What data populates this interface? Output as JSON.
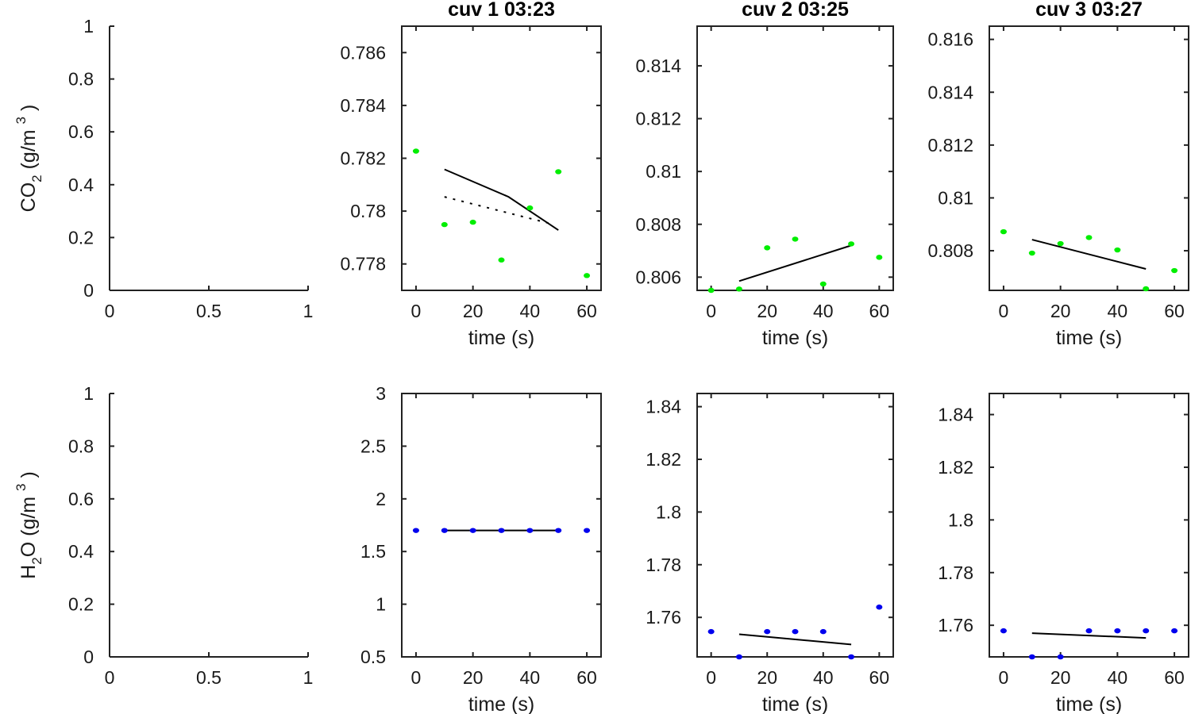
{
  "chart_data": [
    {
      "id": "co2-empty",
      "type": "scatter",
      "row": 0,
      "col": 0,
      "title": "",
      "xlabel": "",
      "ylabel": {
        "base": "CO",
        "sub": "2",
        "unit": "(g/m",
        "sup": "3",
        "close": ")"
      },
      "xlim": [
        0,
        1
      ],
      "ylim": [
        0,
        1
      ],
      "xticks": [
        0,
        0.5,
        1
      ],
      "xtick_labels": [
        "0",
        "0.5",
        "1"
      ],
      "yticks": [
        0,
        0.2,
        0.4,
        0.6,
        0.8,
        1
      ],
      "ytick_labels": [
        "0",
        "0.2",
        "0.4",
        "0.6",
        "0.8",
        "1"
      ],
      "box": false,
      "points": [],
      "lines": []
    },
    {
      "id": "co2-cuv1",
      "type": "scatter",
      "row": 0,
      "col": 1,
      "title": "cuv 1 03:23",
      "xlabel": "time (s)",
      "xlim": [
        -5,
        65
      ],
      "ylim": [
        0.777,
        0.787
      ],
      "xticks": [
        0,
        20,
        40,
        60
      ],
      "xtick_labels": [
        "0",
        "20",
        "40",
        "60"
      ],
      "yticks": [
        0.778,
        0.78,
        0.782,
        0.784,
        0.786
      ],
      "ytick_labels": [
        "0.778",
        "0.78",
        "0.782",
        "0.784",
        "0.786"
      ],
      "box": true,
      "point_color": "#00ee00",
      "points": {
        "x": [
          0,
          10,
          20,
          30,
          40,
          50,
          60
        ],
        "y": [
          0.78227,
          0.77949,
          0.77958,
          0.77815,
          0.78012,
          0.78149,
          0.77756
        ]
      },
      "lines": [
        {
          "name": "fit-solid",
          "style": "solid",
          "x": [
            10,
            32.5,
            50
          ],
          "y": [
            0.78158,
            0.78054,
            0.77928
          ]
        },
        {
          "name": "fit-dotted",
          "style": "dotted",
          "x": [
            10,
            47.5
          ],
          "y": [
            0.78054,
            0.77952
          ]
        }
      ]
    },
    {
      "id": "co2-cuv2",
      "type": "scatter",
      "row": 0,
      "col": 2,
      "title": "cuv 2 03:25",
      "xlabel": "time (s)",
      "xlim": [
        -5,
        65
      ],
      "ylim": [
        0.8055,
        0.8155
      ],
      "xticks": [
        0,
        20,
        40,
        60
      ],
      "xtick_labels": [
        "0",
        "20",
        "40",
        "60"
      ],
      "yticks": [
        0.806,
        0.808,
        0.81,
        0.812,
        0.814
      ],
      "ytick_labels": [
        "0.806",
        "0.808",
        "0.81",
        "0.812",
        "0.814"
      ],
      "box": true,
      "point_color": "#00ee00",
      "points": {
        "x": [
          0,
          10,
          20,
          30,
          40,
          50,
          60
        ],
        "y": [
          0.8055,
          0.80555,
          0.80711,
          0.80744,
          0.80574,
          0.80726,
          0.80675
        ]
      },
      "lines": [
        {
          "name": "fit-solid",
          "style": "solid",
          "x": [
            10,
            50
          ],
          "y": [
            0.80585,
            0.8072
          ]
        }
      ]
    },
    {
      "id": "co2-cuv3",
      "type": "scatter",
      "row": 0,
      "col": 3,
      "title": "cuv 3 03:27",
      "xlabel": "time (s)",
      "xlim": [
        -5,
        65
      ],
      "ylim": [
        0.8065,
        0.8165
      ],
      "xticks": [
        0,
        20,
        40,
        60
      ],
      "xtick_labels": [
        "0",
        "20",
        "40",
        "60"
      ],
      "yticks": [
        0.808,
        0.81,
        0.812,
        0.814,
        0.816
      ],
      "ytick_labels": [
        "0.808",
        "0.81",
        "0.812",
        "0.814",
        "0.816"
      ],
      "box": true,
      "point_color": "#00ee00",
      "points": {
        "x": [
          0,
          10,
          20,
          30,
          40,
          50,
          60
        ],
        "y": [
          0.80872,
          0.80791,
          0.80827,
          0.8085,
          0.80803,
          0.80656,
          0.80725
        ]
      },
      "lines": [
        {
          "name": "fit-solid",
          "style": "solid",
          "x": [
            10,
            50
          ],
          "y": [
            0.80842,
            0.80731
          ]
        }
      ]
    },
    {
      "id": "h2o-empty",
      "type": "scatter",
      "row": 1,
      "col": 0,
      "title": "",
      "xlabel": "",
      "ylabel": {
        "base": "H",
        "sub": "2",
        "after": "O",
        "unit": "(g/m",
        "sup": "3",
        "close": ")"
      },
      "xlim": [
        0,
        1
      ],
      "ylim": [
        0,
        1
      ],
      "xticks": [
        0,
        0.5,
        1
      ],
      "xtick_labels": [
        "0",
        "0.5",
        "1"
      ],
      "yticks": [
        0,
        0.2,
        0.4,
        0.6,
        0.8,
        1
      ],
      "ytick_labels": [
        "0",
        "0.2",
        "0.4",
        "0.6",
        "0.8",
        "1"
      ],
      "box": false,
      "points": [],
      "lines": []
    },
    {
      "id": "h2o-cuv1",
      "type": "scatter",
      "row": 1,
      "col": 1,
      "title": "",
      "xlabel": "time (s)",
      "xlim": [
        -5,
        65
      ],
      "ylim": [
        0.5,
        3
      ],
      "xticks": [
        0,
        20,
        40,
        60
      ],
      "xtick_labels": [
        "0",
        "20",
        "40",
        "60"
      ],
      "yticks": [
        0.5,
        1,
        1.5,
        2,
        2.5,
        3
      ],
      "ytick_labels": [
        "0.5",
        "1",
        "1.5",
        "2",
        "2.5",
        "3"
      ],
      "box": true,
      "point_color": "#0000ee",
      "points": {
        "x": [
          0,
          10,
          20,
          30,
          40,
          50,
          60
        ],
        "y": [
          1.7,
          1.7,
          1.7,
          1.7,
          1.7,
          1.7,
          1.7
        ]
      },
      "lines": [
        {
          "name": "fit-solid",
          "style": "solid",
          "x": [
            10,
            50
          ],
          "y": [
            1.7,
            1.7
          ]
        }
      ]
    },
    {
      "id": "h2o-cuv2",
      "type": "scatter",
      "row": 1,
      "col": 2,
      "title": "",
      "xlabel": "time (s)",
      "xlim": [
        -5,
        65
      ],
      "ylim": [
        1.745,
        1.845
      ],
      "xticks": [
        0,
        20,
        40,
        60
      ],
      "xtick_labels": [
        "0",
        "20",
        "40",
        "60"
      ],
      "yticks": [
        1.76,
        1.78,
        1.8,
        1.82,
        1.84
      ],
      "ytick_labels": [
        "1.76",
        "1.78",
        "1.8",
        "1.82",
        "1.84"
      ],
      "box": true,
      "point_color": "#0000ee",
      "points": {
        "x": [
          0,
          10,
          20,
          30,
          40,
          50,
          60
        ],
        "y": [
          1.7546,
          1.745,
          1.7546,
          1.7546,
          1.7546,
          1.745,
          1.7639
        ]
      },
      "lines": [
        {
          "name": "fit-solid",
          "style": "solid",
          "x": [
            10,
            50
          ],
          "y": [
            1.7536,
            1.7497
          ]
        }
      ]
    },
    {
      "id": "h2o-cuv3",
      "type": "scatter",
      "row": 1,
      "col": 3,
      "title": "",
      "xlabel": "time (s)",
      "xlim": [
        -5,
        65
      ],
      "ylim": [
        1.748,
        1.848
      ],
      "xticks": [
        0,
        20,
        40,
        60
      ],
      "xtick_labels": [
        "0",
        "20",
        "40",
        "60"
      ],
      "yticks": [
        1.76,
        1.78,
        1.8,
        1.82,
        1.84
      ],
      "ytick_labels": [
        "1.76",
        "1.78",
        "1.8",
        "1.82",
        "1.84"
      ],
      "box": true,
      "point_color": "#0000ee",
      "points": {
        "x": [
          0,
          10,
          20,
          30,
          40,
          50,
          60
        ],
        "y": [
          1.7579,
          1.748,
          1.748,
          1.7579,
          1.7579,
          1.7579,
          1.7579
        ]
      },
      "lines": [
        {
          "name": "fit-solid",
          "style": "solid",
          "x": [
            10,
            50
          ],
          "y": [
            1.757,
            1.7552
          ]
        }
      ]
    }
  ]
}
